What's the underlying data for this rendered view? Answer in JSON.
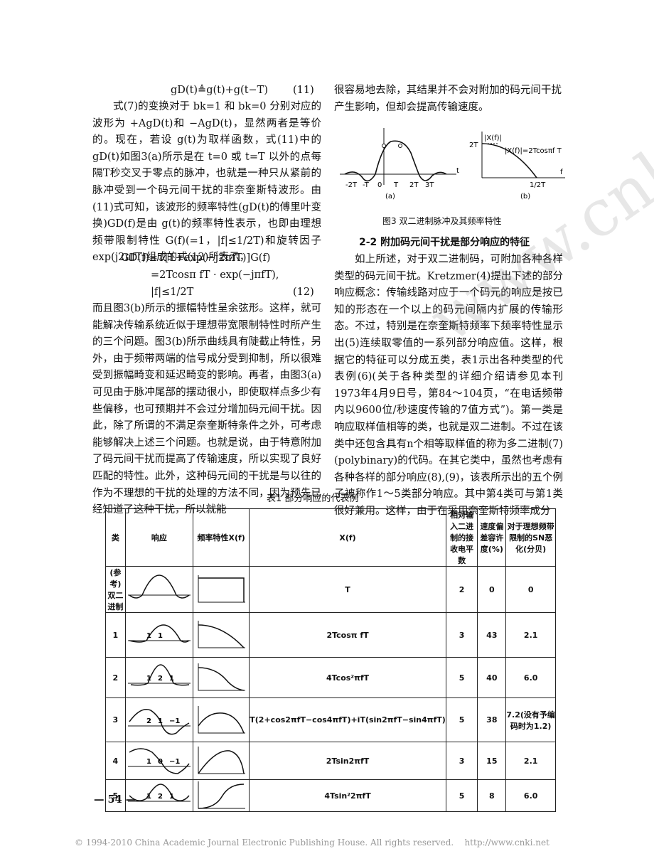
{
  "left_column": {
    "equation_11": {
      "formula": "gD(t)≜g(t)+g(t−T)",
      "number": "(11)"
    },
    "paragraph_1": "式(7)的变换对于 bk=1 和 bk=0 分别对应的波形为 +AgD(t)和 −AgD(t)，显然两者是等价的。现在，若设 g(t)为取样函数，式(11)中的 gD(t)如图3(a)所示是在 t=0 或 t=T 以外的点每隔T秒交叉于零点的脉冲，也就是一种只从紧前的脉冲受到一个码元间干扰的非奈奎斯特波形。由(11)式可知，该波形的频率特性(gD(t)的傅里叶变换)GD(f)是由 g(t)的频率特性表示，也即由理想频带限制特性 G(f)(=1，|f|≤1/2T)和旋转因子 exp(j2πfT)组成的式(12)所表示，",
    "equation_12": {
      "line_1": "GD(f)=T[1+exp(−j2πfT)]G(f)",
      "line_2": "=2Tcosπ fT · exp(−jπfT),",
      "line_3": "|f|≤1/2T",
      "number": "(12)"
    },
    "paragraph_2": "而且图3(b)所示的振幅特性呈余弦形。这样，就可能解决传输系统近似于理想带宽限制特性时所产生的三个问题。图3(b)所示曲线具有陡截止特性，另外，由于频带两端的信号成分受到抑制，所以很难受到振幅畸变和延迟畸变的影响。再者，由图3(a)可见由于脉冲尾部的摆动很小，即使取样点多少有些偏移，也可预期并不会过分增加码元间干扰。因此，除了所谓的不满足奈奎斯特条件之外，可考虑能够解决上述三个问题。也就是说，由于特意附加了码元间干扰而提高了传输速度，所以实现了良好匹配的特性。此外，这种码元间的干扰是与以往的作为不理想的干扰的处理的方法不同，因为预先已经知道了这种干扰，所以就能"
  },
  "right_column": {
    "paragraph_1": "很容易地去除，其结果并不会对附加的码元间干扰产生影响，但却会提高传输速度。",
    "figure_3": {
      "a": {
        "tick_labels": [
          "-2T",
          "-T",
          "0",
          "T",
          "2T",
          "3T"
        ],
        "axis_label": "t",
        "caption": "(a)"
      },
      "b": {
        "y_label": "2T",
        "curve_label": "|X(f)|",
        "formula": "|X(f)|=2Tcosπf T",
        "x_tick": "1/2T",
        "axis_label": "f",
        "caption": "(b)"
      },
      "caption": "图3  双二进制脉冲及其频率特性"
    },
    "section_heading": "2-2  附加码元间干扰是部分响应的特征",
    "paragraph_2": "如上所述，对于双二进制码，可附加各种各样类型的码元间干扰。Kretzmer(4)提出下述的部分响应概念：传输线路对应于一个码元的响应是按已知的形态在一个以上的码元间隔内扩展的传输形态。不过，特别是在奈奎斯特频率下频率特性显示出(5)连续取零值的一系列部分响应值。这样，根据它的特征可以分成五类，表1示出各种类型的代表例(6)(关于各种类型的详细介绍请参见本刊1973年4月9日号，第84～104页，“在电话频带内以9600位/秒速度传输的7值方式”)。第一类是响应取样值相等的类，也就是双二进制。不过在该类中还包含具有n个相等取样值的称为多二进制(7)(polybinary)的代码。在其它类中，虽然也考虑有各种各样的部分响应(8),(9)，该表所示出的五个例子被称作1～5类部分响应。其中第4类可与第1类很好兼用。这样，由于在采用奈奎斯特频率成分"
  },
  "table_1": {
    "title": "表1  部分响应的代表例",
    "header": [
      "类",
      "响应",
      "频率特性X(f)",
      "X(f)",
      "相对输入二进制的接收电平数",
      "速度偏差容许度(%)",
      "对于理想频带限制的SN恶化(分贝)"
    ],
    "rows": [
      {
        "class": "(参考)双二进制",
        "response_labels": [],
        "x_f": "T",
        "levels": "2",
        "speed_tolerance": "0",
        "sn_degradation": "0"
      },
      {
        "class": "1",
        "response_labels": [
          "1",
          "1"
        ],
        "x_f": "2Tcosπ fT",
        "levels": "3",
        "speed_tolerance": "43",
        "sn_degradation": "2.1"
      },
      {
        "class": "2",
        "response_labels": [
          "1",
          "2",
          "1"
        ],
        "x_f": "4Tcos²πfT",
        "levels": "5",
        "speed_tolerance": "40",
        "sn_degradation": "6.0"
      },
      {
        "class": "3",
        "response_labels": [
          "2",
          "1",
          "−1"
        ],
        "x_f": "T(2+cos2πfT−cos4πfT)+iT(sin2πfT−sin4πfT)",
        "levels": "5",
        "speed_tolerance": "38",
        "sn_degradation": "7.2(没有予编码时为1.2)"
      },
      {
        "class": "4",
        "response_labels": [
          "1",
          "0",
          "−1"
        ],
        "x_f": "2Tsin2πfT",
        "levels": "3",
        "speed_tolerance": "15",
        "sn_degradation": "2.1"
      },
      {
        "class": "5",
        "response_labels": [
          "1",
          "2",
          "1"
        ],
        "x_f": "4Tsin²2πfT",
        "levels": "5",
        "speed_tolerance": "8",
        "sn_degradation": "6.0"
      }
    ]
  },
  "footer": {
    "page_number": "— 54 —",
    "copyright": "© 1994-2010 China Academic Journal Electronic Publishing House. All rights reserved.",
    "url": "http://www.cnki.net",
    "watermark": "www.cnki.net"
  }
}
